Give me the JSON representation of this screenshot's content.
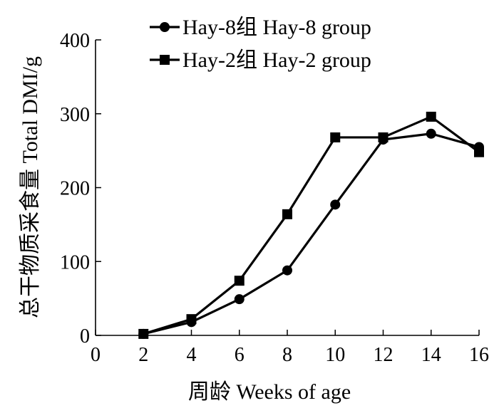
{
  "chart_data": {
    "type": "line",
    "xlabel": "周龄 Weeks of age",
    "ylabel": "总干物质采食量 Total DMI/g",
    "x_ticks": [
      0,
      2,
      4,
      6,
      8,
      10,
      12,
      14,
      16
    ],
    "y_ticks": [
      0,
      100,
      200,
      300,
      400
    ],
    "xlim": [
      0,
      16
    ],
    "ylim": [
      0,
      400
    ],
    "grid": false,
    "legend_position": "top-left",
    "series": [
      {
        "name": "Hay-8组 Hay-8 group",
        "marker": "circle",
        "color": "#000000",
        "x": [
          2,
          4,
          6,
          8,
          10,
          12,
          14,
          16
        ],
        "values": [
          2,
          18,
          49,
          88,
          177,
          265,
          273,
          255
        ]
      },
      {
        "name": "Hay-2组 Hay-2 group",
        "marker": "square",
        "color": "#000000",
        "x": [
          2,
          4,
          6,
          8,
          10,
          12,
          14,
          16
        ],
        "values": [
          2,
          22,
          74,
          164,
          268,
          268,
          296,
          248
        ]
      }
    ]
  }
}
